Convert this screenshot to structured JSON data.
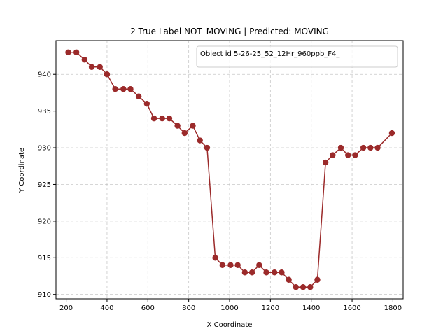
{
  "chart_data": {
    "type": "line",
    "title": "2 True Label NOT_MOVING | Predicted: MOVING",
    "xlabel": "X Coordinate",
    "ylabel": "Y Coordinate",
    "xlim": [
      150,
      1850
    ],
    "ylim": [
      909.4,
      944.6
    ],
    "xticks": [
      200,
      400,
      600,
      800,
      1000,
      1200,
      1400,
      1600,
      1800
    ],
    "yticks": [
      910,
      915,
      920,
      925,
      930,
      935,
      940
    ],
    "grid": true,
    "legend_position": "top-right",
    "series": [
      {
        "name": "Object id 5-26-25_52_12Hr_960ppb_F4_",
        "color": "#9b2a2a",
        "x": [
          210,
          250,
          290,
          325,
          365,
          400,
          440,
          480,
          515,
          555,
          595,
          630,
          670,
          705,
          745,
          780,
          820,
          855,
          890,
          930,
          965,
          1005,
          1040,
          1075,
          1110,
          1145,
          1180,
          1220,
          1255,
          1290,
          1325,
          1360,
          1395,
          1430,
          1470,
          1505,
          1545,
          1580,
          1615,
          1655,
          1690,
          1725,
          1795
        ],
        "y": [
          943,
          943,
          942,
          941,
          941,
          940,
          938,
          938,
          938,
          937,
          936,
          934,
          934,
          934,
          933,
          932,
          933,
          931,
          930,
          915,
          914,
          914,
          914,
          913,
          913,
          914,
          913,
          913,
          913,
          912,
          911,
          911,
          911,
          912,
          928,
          929,
          930,
          929,
          929,
          930,
          930,
          930,
          932
        ]
      }
    ]
  }
}
